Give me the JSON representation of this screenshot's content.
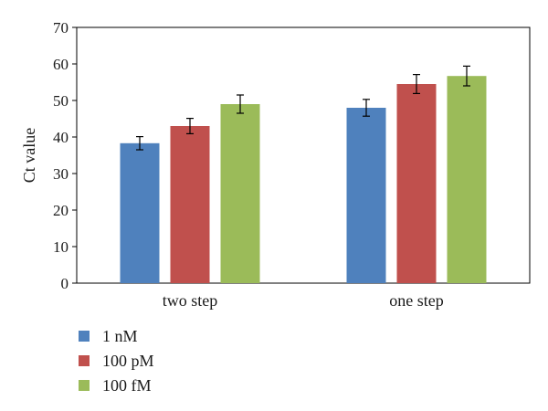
{
  "chart_data": {
    "type": "bar",
    "title": "",
    "xlabel": "",
    "ylabel": "Ct value",
    "ylim": [
      0,
      70
    ],
    "y_ticks": [
      "0",
      "10",
      "20",
      "30",
      "40",
      "50",
      "60",
      "70"
    ],
    "categories": [
      "two step",
      "one step"
    ],
    "series": [
      {
        "name": "1 nM",
        "values": [
          38.3,
          48.0
        ],
        "errors": [
          1.8,
          2.3
        ]
      },
      {
        "name": "100 pM",
        "values": [
          43.0,
          54.5
        ],
        "errors": [
          2.1,
          2.6
        ]
      },
      {
        "name": "100 fM",
        "values": [
          49.0,
          56.7
        ],
        "errors": [
          2.5,
          2.7
        ]
      }
    ],
    "colors": [
      "#4f81bd",
      "#c0504d",
      "#9bbb59"
    ],
    "grid": false,
    "legend_position": "bottom-left"
  }
}
